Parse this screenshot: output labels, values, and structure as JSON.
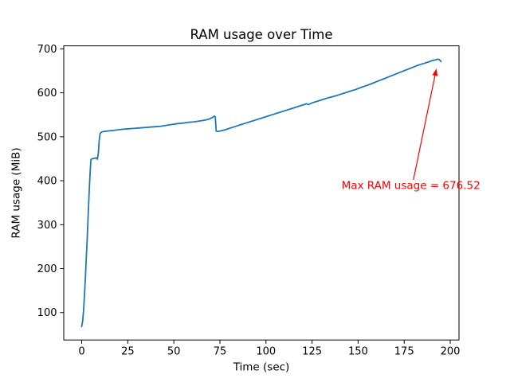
{
  "figure": {
    "background": "#ffffff"
  },
  "chart_data": {
    "type": "line",
    "title": "RAM usage over Time",
    "xlabel": "Time (sec)",
    "ylabel": "RAM usage (MiB)",
    "xlim": [
      -9.75,
      204.75
    ],
    "ylim": [
      37.6,
      706.9
    ],
    "xticks": [
      0,
      25,
      50,
      75,
      100,
      125,
      150,
      175,
      200
    ],
    "yticks": [
      100,
      200,
      300,
      400,
      500,
      600,
      700
    ],
    "grid": false,
    "legend": "none",
    "line_color": "#1f77b4",
    "series_name": "RAM usage",
    "points": [
      [
        0,
        68
      ],
      [
        0.5,
        80
      ],
      [
        1,
        105
      ],
      [
        1.5,
        140
      ],
      [
        2,
        180
      ],
      [
        2.5,
        225
      ],
      [
        3,
        270
      ],
      [
        3.5,
        320
      ],
      [
        4,
        370
      ],
      [
        4.5,
        415
      ],
      [
        5,
        448
      ],
      [
        5.5,
        450
      ],
      [
        6,
        450
      ],
      [
        7,
        451
      ],
      [
        8,
        452
      ],
      [
        8.5,
        449
      ],
      [
        9,
        462
      ],
      [
        9.5,
        492
      ],
      [
        10,
        508
      ],
      [
        11,
        511
      ],
      [
        12,
        512
      ],
      [
        14,
        513
      ],
      [
        16,
        514
      ],
      [
        18,
        515
      ],
      [
        20,
        516
      ],
      [
        22,
        517
      ],
      [
        25,
        518
      ],
      [
        28,
        519
      ],
      [
        31,
        520
      ],
      [
        34,
        521
      ],
      [
        37,
        522
      ],
      [
        40,
        523
      ],
      [
        43,
        524
      ],
      [
        46,
        526
      ],
      [
        49,
        528
      ],
      [
        52,
        530
      ],
      [
        55,
        531
      ],
      [
        58,
        533
      ],
      [
        61,
        534
      ],
      [
        64,
        536
      ],
      [
        67,
        538
      ],
      [
        69,
        540
      ],
      [
        70,
        542
      ],
      [
        71,
        544
      ],
      [
        72,
        547
      ],
      [
        72.5,
        545
      ],
      [
        73,
        513
      ],
      [
        74,
        512
      ],
      [
        76,
        514
      ],
      [
        78,
        516
      ],
      [
        80,
        519
      ],
      [
        83,
        523
      ],
      [
        86,
        527
      ],
      [
        89,
        531
      ],
      [
        92,
        535
      ],
      [
        95,
        539
      ],
      [
        98,
        543
      ],
      [
        101,
        547
      ],
      [
        104,
        551
      ],
      [
        107,
        555
      ],
      [
        110,
        559
      ],
      [
        113,
        563
      ],
      [
        116,
        567
      ],
      [
        119,
        571
      ],
      [
        122,
        575
      ],
      [
        123,
        573
      ],
      [
        125,
        577
      ],
      [
        128,
        581
      ],
      [
        131,
        585
      ],
      [
        134,
        589
      ],
      [
        137,
        592
      ],
      [
        140,
        596
      ],
      [
        143,
        600
      ],
      [
        146,
        604
      ],
      [
        149,
        608
      ],
      [
        152,
        613
      ],
      [
        155,
        617
      ],
      [
        158,
        622
      ],
      [
        161,
        627
      ],
      [
        164,
        632
      ],
      [
        167,
        637
      ],
      [
        170,
        642
      ],
      [
        173,
        647
      ],
      [
        176,
        652
      ],
      [
        179,
        657
      ],
      [
        182,
        662
      ],
      [
        185,
        666
      ],
      [
        188,
        670
      ],
      [
        190,
        673
      ],
      [
        192,
        675
      ],
      [
        193,
        676.52
      ],
      [
        194,
        676
      ],
      [
        195,
        671
      ]
    ],
    "annotation": {
      "text": "Max RAM usage = 676.52",
      "color": "#ff0000",
      "max_value": 676.52,
      "text_xy": [
        141,
        381
      ],
      "arrow_from": [
        180,
        402
      ],
      "arrow_to": [
        192.5,
        655
      ]
    }
  }
}
